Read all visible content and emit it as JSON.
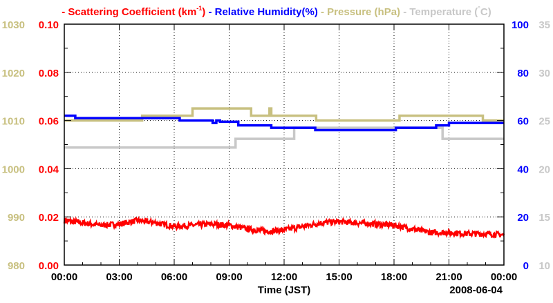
{
  "chart_data": {
    "type": "line",
    "legend": [
      {
        "prefix": "- ",
        "text": "Scattering Coefficient (km",
        "sup": "-1",
        "suffix": ") ",
        "color": "#ff0000"
      },
      {
        "prefix": "- ",
        "text": "Relative Humidity(%) ",
        "color": "#0000ff"
      },
      {
        "prefix": "- ",
        "text": "Pressure (hPa) ",
        "color": "#c8c080"
      },
      {
        "prefix": "- ",
        "text": "Temperature (",
        "sup": "°",
        "suffix": "C)",
        "color": "#c8c8c8"
      }
    ],
    "legend_placement": "top",
    "xlabel": "Time (JST)",
    "date_label": "2008-06-04",
    "xlim": [
      0,
      24
    ],
    "x_ticks": [
      0,
      3,
      6,
      9,
      12,
      15,
      18,
      21,
      24
    ],
    "x_tick_labels": [
      "00:00",
      "03:00",
      "06:00",
      "09:00",
      "12:00",
      "15:00",
      "18:00",
      "21:00",
      "00:00"
    ],
    "grid": true,
    "axes": {
      "scattering": {
        "side": "left-inner",
        "ylim": [
          0,
          0.1
        ],
        "tick_labels": [
          "0.00",
          "0.02",
          "0.04",
          "0.06",
          "0.08",
          "0.10"
        ],
        "color": "#ff0000"
      },
      "pressure": {
        "side": "left-outer",
        "ylim": [
          980,
          1030
        ],
        "tick_labels": [
          "980",
          "990",
          "1000",
          "1010",
          "1020",
          "1030"
        ],
        "color": "#c8c080"
      },
      "humidity": {
        "side": "right-inner",
        "ylim": [
          0,
          100
        ],
        "tick_labels": [
          "0",
          "20",
          "40",
          "60",
          "80",
          "100"
        ],
        "color": "#0000ff"
      },
      "temperature": {
        "side": "right-outer",
        "ylim": [
          10,
          35
        ],
        "tick_labels": [
          "10",
          "15",
          "20",
          "25",
          "30",
          "35"
        ],
        "color": "#c8c8c8"
      }
    },
    "series": [
      {
        "name": "Pressure (hPa)",
        "axis": "pressure",
        "color": "#c8c080",
        "step": true,
        "x": [
          0,
          4.25,
          7.0,
          10.2,
          11.2,
          11.3,
          11.35,
          13.75,
          18.3,
          22.85,
          24
        ],
        "y": [
          1010,
          1011,
          1012.5,
          1011,
          1012.5,
          1011,
          1011,
          1010,
          1011,
          1010,
          1010
        ]
      },
      {
        "name": "Temperature (C)",
        "axis": "temperature",
        "color": "#c8c8c8",
        "step": true,
        "x": [
          0,
          9.35,
          12.55,
          20.65,
          24
        ],
        "y": [
          22.2,
          23.1,
          24.25,
          23.1,
          23.1
        ]
      },
      {
        "name": "Relative Humidity (%)",
        "axis": "humidity",
        "color": "#0000ff",
        "step": true,
        "x": [
          0,
          0.6,
          6.3,
          8.1,
          8.3,
          8.5,
          9.5,
          11.3,
          13.7,
          18.1,
          20.3,
          21.0,
          24
        ],
        "y": [
          62,
          61,
          60,
          59,
          60,
          59.5,
          58,
          57,
          56,
          57,
          58,
          59,
          59
        ]
      },
      {
        "name": "Scattering Coefficient (km-1)",
        "axis": "scattering",
        "color": "#ff0000",
        "step": false,
        "noise": 0.0012,
        "x": [
          0,
          1,
          2,
          3,
          4,
          5,
          6,
          7,
          8,
          9,
          10,
          11,
          12,
          13,
          14,
          15,
          16,
          17,
          18,
          19,
          20,
          21,
          22,
          23,
          24
        ],
        "y": [
          0.0185,
          0.0175,
          0.0165,
          0.017,
          0.0185,
          0.0175,
          0.016,
          0.0165,
          0.017,
          0.0165,
          0.015,
          0.014,
          0.0145,
          0.016,
          0.0175,
          0.018,
          0.0175,
          0.017,
          0.0165,
          0.015,
          0.0135,
          0.0135,
          0.013,
          0.013,
          0.0125
        ]
      }
    ]
  }
}
